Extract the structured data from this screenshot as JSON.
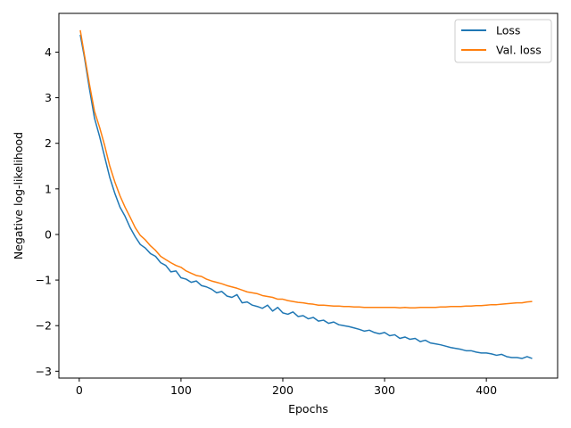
{
  "chart_data": {
    "type": "line",
    "title": "",
    "xlabel": "Epochs",
    "ylabel": "Negative log-likelihood",
    "xlim": [
      -20,
      470
    ],
    "ylim": [
      -3.15,
      4.85
    ],
    "xticks": [
      0,
      100,
      200,
      300,
      400
    ],
    "yticks": [
      4,
      3,
      2,
      1,
      0,
      -1,
      -2,
      -3
    ],
    "grid": false,
    "legend_position": "top-right",
    "series": [
      {
        "name": "Loss",
        "color": "#1f77b4",
        "x": [
          1,
          5,
          10,
          15,
          20,
          25,
          30,
          35,
          40,
          45,
          50,
          55,
          60,
          65,
          70,
          75,
          80,
          85,
          90,
          95,
          100,
          105,
          110,
          115,
          120,
          125,
          130,
          135,
          140,
          145,
          150,
          155,
          160,
          165,
          170,
          175,
          180,
          185,
          190,
          195,
          200,
          205,
          210,
          215,
          220,
          225,
          230,
          235,
          240,
          245,
          250,
          255,
          260,
          265,
          270,
          275,
          280,
          285,
          290,
          295,
          300,
          305,
          310,
          315,
          320,
          325,
          330,
          335,
          340,
          345,
          350,
          355,
          360,
          365,
          370,
          375,
          380,
          385,
          390,
          395,
          400,
          405,
          410,
          415,
          420,
          425,
          430,
          435,
          440,
          445
        ],
        "y": [
          4.38,
          3.9,
          3.2,
          2.55,
          2.15,
          1.7,
          1.25,
          0.9,
          0.6,
          0.4,
          0.15,
          -0.05,
          -0.22,
          -0.3,
          -0.42,
          -0.48,
          -0.62,
          -0.68,
          -0.82,
          -0.8,
          -0.95,
          -0.98,
          -1.05,
          -1.02,
          -1.12,
          -1.15,
          -1.2,
          -1.28,
          -1.25,
          -1.35,
          -1.38,
          -1.32,
          -1.5,
          -1.48,
          -1.55,
          -1.58,
          -1.62,
          -1.55,
          -1.68,
          -1.6,
          -1.72,
          -1.75,
          -1.7,
          -1.8,
          -1.78,
          -1.85,
          -1.82,
          -1.9,
          -1.88,
          -1.95,
          -1.92,
          -1.98,
          -2.0,
          -2.02,
          -2.05,
          -2.08,
          -2.12,
          -2.1,
          -2.15,
          -2.18,
          -2.15,
          -2.22,
          -2.2,
          -2.28,
          -2.25,
          -2.3,
          -2.28,
          -2.35,
          -2.32,
          -2.38,
          -2.4,
          -2.42,
          -2.45,
          -2.48,
          -2.5,
          -2.52,
          -2.55,
          -2.55,
          -2.58,
          -2.6,
          -2.6,
          -2.62,
          -2.65,
          -2.63,
          -2.68,
          -2.7,
          -2.7,
          -2.72,
          -2.68,
          -2.72
        ]
      },
      {
        "name": "Val. loss",
        "color": "#ff7f0e",
        "x": [
          1,
          5,
          10,
          15,
          20,
          25,
          30,
          35,
          40,
          45,
          50,
          55,
          60,
          65,
          70,
          75,
          80,
          85,
          90,
          95,
          100,
          105,
          110,
          115,
          120,
          125,
          130,
          135,
          140,
          145,
          150,
          155,
          160,
          165,
          170,
          175,
          180,
          185,
          190,
          195,
          200,
          205,
          210,
          215,
          220,
          225,
          230,
          235,
          240,
          245,
          250,
          255,
          260,
          265,
          270,
          275,
          280,
          285,
          290,
          295,
          300,
          305,
          310,
          315,
          320,
          325,
          330,
          335,
          340,
          345,
          350,
          355,
          360,
          365,
          370,
          375,
          380,
          385,
          390,
          395,
          400,
          405,
          410,
          415,
          420,
          425,
          430,
          435,
          440,
          445
        ],
        "y": [
          4.48,
          3.95,
          3.3,
          2.7,
          2.35,
          1.95,
          1.5,
          1.15,
          0.85,
          0.6,
          0.38,
          0.15,
          -0.02,
          -0.12,
          -0.25,
          -0.35,
          -0.48,
          -0.55,
          -0.62,
          -0.68,
          -0.72,
          -0.8,
          -0.85,
          -0.9,
          -0.92,
          -0.98,
          -1.02,
          -1.05,
          -1.08,
          -1.12,
          -1.15,
          -1.18,
          -1.22,
          -1.26,
          -1.28,
          -1.3,
          -1.34,
          -1.36,
          -1.38,
          -1.42,
          -1.42,
          -1.45,
          -1.47,
          -1.49,
          -1.5,
          -1.52,
          -1.53,
          -1.55,
          -1.55,
          -1.56,
          -1.57,
          -1.57,
          -1.58,
          -1.58,
          -1.59,
          -1.59,
          -1.6,
          -1.6,
          -1.6,
          -1.6,
          -1.6,
          -1.6,
          -1.6,
          -1.61,
          -1.6,
          -1.61,
          -1.61,
          -1.6,
          -1.6,
          -1.6,
          -1.6,
          -1.59,
          -1.59,
          -1.58,
          -1.58,
          -1.58,
          -1.57,
          -1.57,
          -1.56,
          -1.56,
          -1.55,
          -1.54,
          -1.54,
          -1.53,
          -1.52,
          -1.51,
          -1.5,
          -1.5,
          -1.48,
          -1.47
        ]
      }
    ]
  }
}
